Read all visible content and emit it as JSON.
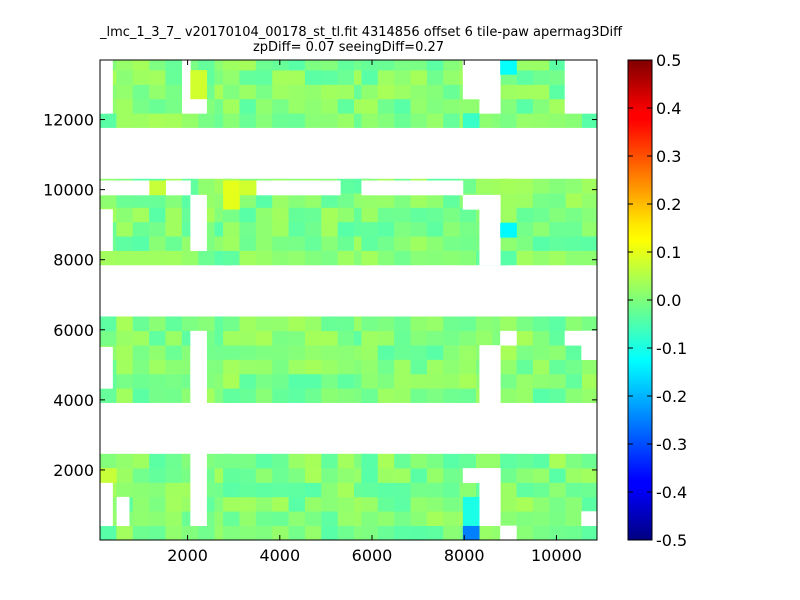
{
  "chart_data": {
    "type": "heatmap",
    "title": "_lmc_1_3_7_ v20170104_00178_st_tl.fit 4314856 offset 6 tile-paw apermag3Diff",
    "subtitle": "zpDiff= 0.07 seeingDiff=0.27",
    "xlabel": "",
    "ylabel": "",
    "xlim": [
      100,
      10880
    ],
    "ylim": [
      0,
      13700
    ],
    "x_ticks": [
      "2000",
      "4000",
      "6000",
      "8000",
      "10000"
    ],
    "y_ticks": [
      "2000",
      "4000",
      "6000",
      "8000",
      "10000",
      "12000"
    ],
    "colorbar": {
      "range": [
        -0.5,
        0.5
      ],
      "colormap": "jet",
      "ticks": [
        "-0.5",
        "-0.4",
        "-0.3",
        "-0.2",
        "-0.1",
        "0.0",
        "0.1",
        "0.2",
        "0.3",
        "0.4",
        "0.5"
      ]
    },
    "grid": false,
    "cell_size": [
      355,
      410
    ],
    "column_blocks": [
      {
        "x_start": 100,
        "cols": 8
      },
      {
        "x_start": 2770,
        "cols": 9
      },
      {
        "x_start": 5770,
        "cols": 9
      },
      {
        "x_start": 8780,
        "cols": 8
      }
    ],
    "row_blocks": [
      {
        "y_start": 0,
        "rows": 6
      },
      {
        "y_start": 3920,
        "rows": 6
      },
      {
        "y_start": 7850,
        "rows": 6
      },
      {
        "y_start": 11770,
        "rows": 5
      }
    ],
    "typical_value": 0.0,
    "value_variation": 0.04,
    "missing_cells": [
      [
        0,
        0,
        0
      ],
      [
        0,
        0,
        1
      ],
      [
        0,
        0,
        4
      ],
      [
        0,
        0,
        5
      ],
      [
        0,
        1,
        0
      ],
      [
        0,
        1,
        1
      ],
      [
        0,
        1,
        2
      ],
      [
        0,
        2,
        0
      ],
      [
        0,
        2,
        1
      ],
      [
        0,
        2,
        2
      ],
      [
        0,
        2,
        3
      ],
      [
        0,
        2,
        4
      ],
      [
        0,
        3,
        0
      ],
      [
        0,
        3,
        1
      ],
      [
        0,
        3,
        4
      ],
      [
        0,
        3,
        5
      ],
      [
        3,
        2,
        7
      ],
      [
        3,
        3,
        0
      ],
      [
        3,
        3,
        1
      ],
      [
        3,
        3,
        2
      ],
      [
        3,
        2,
        3
      ],
      [
        3,
        2,
        4
      ],
      [
        3,
        2,
        5
      ],
      [
        1,
        0,
        0
      ],
      [
        1,
        0,
        1
      ],
      [
        1,
        0,
        4
      ],
      [
        1,
        0,
        5
      ],
      [
        1,
        1,
        0
      ],
      [
        1,
        1,
        1
      ],
      [
        1,
        1,
        2
      ],
      [
        2,
        0,
        5
      ],
      [
        2,
        0,
        6
      ],
      [
        2,
        0,
        7
      ],
      [
        2,
        1,
        4
      ],
      [
        2,
        1,
        5
      ],
      [
        2,
        1,
        6
      ],
      [
        2,
        1,
        7
      ],
      [
        2,
        2,
        5
      ],
      [
        2,
        2,
        6
      ],
      [
        2,
        2,
        7
      ],
      [
        2,
        3,
        4
      ],
      [
        2,
        3,
        5
      ],
      [
        2,
        3,
        6
      ],
      [
        2,
        3,
        7
      ],
      [
        3,
        0,
        1
      ],
      [
        3,
        0,
        2
      ],
      [
        3,
        0,
        3
      ],
      [
        3,
        2,
        2
      ],
      [
        3,
        3,
        3
      ],
      [
        3,
        3,
        4
      ]
    ],
    "special_cells": [
      {
        "x": 7970,
        "y": 0,
        "value": -0.25
      },
      {
        "x": 7970,
        "y": 410,
        "value": -0.1
      },
      {
        "x": 7970,
        "y": 820,
        "value": -0.1
      },
      {
        "x": 8780,
        "y": 13290,
        "value": -0.12
      },
      {
        "x": 8780,
        "y": 8640,
        "value": -0.13
      },
      {
        "x": 7970,
        "y": 11770,
        "value": -0.07
      },
      {
        "x": 2770,
        "y": 9850,
        "value": 0.1
      },
      {
        "x": 2770,
        "y": 9440,
        "value": 0.1
      },
      {
        "x": 3130,
        "y": 9850,
        "value": 0.08
      },
      {
        "x": 1170,
        "y": 9850,
        "value": 0.07
      },
      {
        "x": 2060,
        "y": 12590,
        "value": 0.08
      },
      {
        "x": 2060,
        "y": 13000,
        "value": 0.08
      },
      {
        "x": 100,
        "y": 1640,
        "value": 0.07
      }
    ]
  }
}
